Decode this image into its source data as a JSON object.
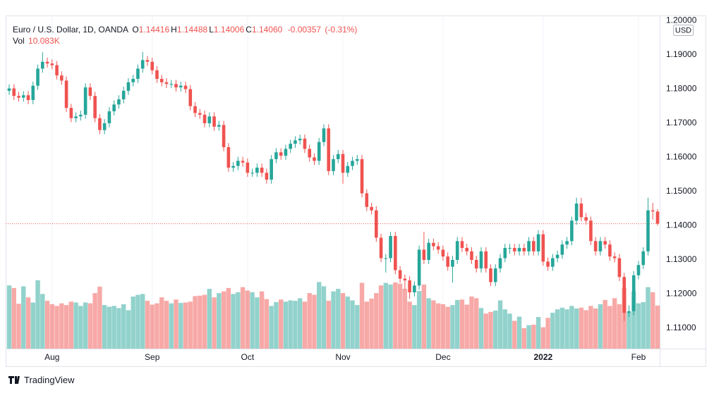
{
  "header": {
    "title": "Euro / U.S. Dollar, 1D, OANDA",
    "quote": [
      {
        "key": "O",
        "value": 1.14416
      },
      {
        "key": "H",
        "value": 1.14488
      },
      {
        "key": "L",
        "value": 1.14006
      },
      {
        "key": "C",
        "value": {
          "value": 1.1406,
          "label": "1.14060"
        }
      }
    ],
    "change": -0.00357,
    "change_pct": {
      "value": -0.31,
      "label": "(-0.31%)"
    },
    "volume_key": "Vol",
    "volume_last": {
      "value": 10.083,
      "label": "10.083K"
    }
  },
  "branding": "TradingView",
  "chart_data": {
    "type": "candlestick",
    "currency": "USD",
    "up_color": "#26a69a",
    "down_color": "#ef5350",
    "grid": true,
    "ylim": [
      1.10402,
      1.20155
    ],
    "yticks": [
      {
        "value": 1.11,
        "label": "1.11000"
      },
      {
        "value": 1.12,
        "label": "1.12000"
      },
      {
        "value": 1.13,
        "label": "1.13000"
      },
      {
        "value": 1.14,
        "label": "1.14000"
      },
      {
        "value": 1.15,
        "label": "1.15000"
      },
      {
        "value": 1.16,
        "label": "1.16000"
      },
      {
        "value": 1.17,
        "label": "1.17000"
      },
      {
        "value": 1.18,
        "label": "1.18000"
      },
      {
        "value": 1.19,
        "label": "1.19000"
      },
      {
        "value": 1.2,
        "label": "1.20000"
      }
    ],
    "last_price": 1.1406,
    "categories": [
      null,
      null,
      null,
      null,
      null,
      null,
      null,
      null,
      null,
      "Aug",
      null,
      null,
      null,
      null,
      null,
      null,
      null,
      null,
      null,
      null,
      null,
      null,
      null,
      null,
      null,
      null,
      null,
      null,
      null,
      null,
      "Sep",
      null,
      null,
      null,
      null,
      null,
      null,
      null,
      null,
      null,
      null,
      null,
      null,
      null,
      null,
      null,
      null,
      null,
      null,
      null,
      "Oct",
      null,
      null,
      null,
      null,
      null,
      null,
      null,
      null,
      null,
      null,
      null,
      null,
      null,
      null,
      null,
      null,
      null,
      null,
      null,
      "Nov",
      null,
      null,
      null,
      null,
      null,
      null,
      null,
      null,
      null,
      null,
      null,
      null,
      null,
      null,
      null,
      null,
      null,
      null,
      null,
      null,
      "Dec",
      null,
      null,
      null,
      null,
      null,
      null,
      null,
      null,
      null,
      null,
      null,
      null,
      null,
      null,
      null,
      null,
      null,
      null,
      null,
      null,
      "2022",
      null,
      null,
      null,
      null,
      null,
      null,
      null,
      null,
      null,
      null,
      null,
      null,
      null,
      null,
      null,
      null,
      null,
      null,
      null,
      "Feb",
      null,
      null,
      null,
      null
    ],
    "ohlc": [
      [
        1.1795,
        1.1814,
        1.1783,
        1.1802
      ],
      [
        1.1802,
        1.1814,
        1.1768,
        1.178
      ],
      [
        1.178,
        1.1792,
        1.1763,
        1.1775
      ],
      [
        1.1775,
        1.1794,
        1.1763,
        1.1782
      ],
      [
        1.1782,
        1.1794,
        1.1756,
        1.1768
      ],
      [
        1.1768,
        1.1822,
        1.1756,
        1.181
      ],
      [
        1.181,
        1.1872,
        1.1798,
        1.186
      ],
      [
        1.186,
        1.1908,
        1.1848,
        1.188
      ],
      [
        1.188,
        1.1892,
        1.1863,
        1.1875
      ],
      [
        1.1875,
        1.1887,
        1.1858,
        1.187
      ],
      [
        1.187,
        1.1882,
        1.1828,
        1.184
      ],
      [
        1.184,
        1.1852,
        1.1813,
        1.1825
      ],
      [
        1.1825,
        1.1837,
        1.1733,
        1.1745
      ],
      [
        1.1745,
        1.1757,
        1.1703,
        1.1715
      ],
      [
        1.1715,
        1.1732,
        1.1703,
        1.172
      ],
      [
        1.172,
        1.1737,
        1.1708,
        1.1725
      ],
      [
        1.1725,
        1.1817,
        1.1713,
        1.1805
      ],
      [
        1.1805,
        1.1817,
        1.1768,
        1.178
      ],
      [
        1.178,
        1.1792,
        1.1703,
        1.1715
      ],
      [
        1.1715,
        1.1727,
        1.1668,
        1.168
      ],
      [
        1.168,
        1.1712,
        1.1668,
        1.17
      ],
      [
        1.17,
        1.1747,
        1.1688,
        1.1735
      ],
      [
        1.1735,
        1.1767,
        1.1723,
        1.1755
      ],
      [
        1.1755,
        1.1782,
        1.1743,
        1.177
      ],
      [
        1.177,
        1.1807,
        1.1758,
        1.1795
      ],
      [
        1.1795,
        1.1832,
        1.1783,
        1.182
      ],
      [
        1.182,
        1.1842,
        1.1808,
        1.183
      ],
      [
        1.183,
        1.1872,
        1.1818,
        1.186
      ],
      [
        1.186,
        1.1909,
        1.1848,
        1.1885
      ],
      [
        1.1885,
        1.1897,
        1.1868,
        1.188
      ],
      [
        1.188,
        1.1892,
        1.1843,
        1.1855
      ],
      [
        1.1855,
        1.1867,
        1.1818,
        1.183
      ],
      [
        1.183,
        1.1842,
        1.1808,
        1.182
      ],
      [
        1.182,
        1.1832,
        1.1803,
        1.1815
      ],
      [
        1.1815,
        1.1827,
        1.1803,
        1.1815
      ],
      [
        1.1815,
        1.1827,
        1.1793,
        1.1805
      ],
      [
        1.1805,
        1.1822,
        1.1793,
        1.181
      ],
      [
        1.181,
        1.1822,
        1.1788,
        1.18
      ],
      [
        1.18,
        1.1812,
        1.1738,
        1.175
      ],
      [
        1.175,
        1.1762,
        1.1718,
        1.173
      ],
      [
        1.173,
        1.1742,
        1.1713,
        1.1725
      ],
      [
        1.1725,
        1.1737,
        1.1688,
        1.17
      ],
      [
        1.17,
        1.1732,
        1.1688,
        1.172
      ],
      [
        1.172,
        1.1732,
        1.1678,
        1.169
      ],
      [
        1.169,
        1.1707,
        1.1678,
        1.1695
      ],
      [
        1.1695,
        1.1707,
        1.1618,
        1.163
      ],
      [
        1.163,
        1.1642,
        1.1558,
        1.157
      ],
      [
        1.157,
        1.1587,
        1.1558,
        1.1575
      ],
      [
        1.1575,
        1.1602,
        1.1563,
        1.159
      ],
      [
        1.159,
        1.1602,
        1.1573,
        1.1585
      ],
      [
        1.1585,
        1.1597,
        1.1543,
        1.1555
      ],
      [
        1.1555,
        1.1567,
        1.1543,
        1.1555
      ],
      [
        1.1555,
        1.1582,
        1.1543,
        1.157
      ],
      [
        1.157,
        1.1582,
        1.1543,
        1.1555
      ],
      [
        1.1555,
        1.1567,
        1.1523,
        1.1535
      ],
      [
        1.1535,
        1.1607,
        1.1523,
        1.1595
      ],
      [
        1.1595,
        1.1627,
        1.1583,
        1.1615
      ],
      [
        1.1615,
        1.1627,
        1.1593,
        1.1605
      ],
      [
        1.1605,
        1.1637,
        1.1593,
        1.1625
      ],
      [
        1.1625,
        1.1652,
        1.1613,
        1.164
      ],
      [
        1.164,
        1.1662,
        1.1628,
        1.165
      ],
      [
        1.165,
        1.1667,
        1.1638,
        1.1655
      ],
      [
        1.1655,
        1.1667,
        1.1613,
        1.1625
      ],
      [
        1.1625,
        1.1637,
        1.1588,
        1.16
      ],
      [
        1.16,
        1.1612,
        1.1578,
        1.159
      ],
      [
        1.159,
        1.1657,
        1.1578,
        1.1645
      ],
      [
        1.1645,
        1.1697,
        1.1633,
        1.1685
      ],
      [
        1.1685,
        1.1697,
        1.1548,
        1.156
      ],
      [
        1.156,
        1.1607,
        1.1548,
        1.1595
      ],
      [
        1.1595,
        1.1622,
        1.1583,
        1.161
      ],
      [
        1.161,
        1.1622,
        1.1523,
        1.1555
      ],
      [
        1.1555,
        1.1587,
        1.1543,
        1.1575
      ],
      [
        1.1575,
        1.1602,
        1.1563,
        1.159
      ],
      [
        1.159,
        1.1607,
        1.1578,
        1.1595
      ],
      [
        1.1595,
        1.1607,
        1.1483,
        1.1495
      ],
      [
        1.1495,
        1.1507,
        1.1443,
        1.1455
      ],
      [
        1.1455,
        1.1467,
        1.1433,
        1.1445
      ],
      [
        1.1445,
        1.1457,
        1.1353,
        1.1365
      ],
      [
        1.1365,
        1.1377,
        1.1293,
        1.1305
      ],
      [
        1.1305,
        1.1317,
        1.1263,
        1.1305
      ],
      [
        1.1305,
        1.1382,
        1.1293,
        1.137
      ],
      [
        1.137,
        1.1382,
        1.1258,
        1.127
      ],
      [
        1.127,
        1.1282,
        1.1233,
        1.1245
      ],
      [
        1.1245,
        1.1257,
        1.1213,
        1.124
      ],
      [
        1.124,
        1.1252,
        1.1186,
        1.1205
      ],
      [
        1.1205,
        1.1237,
        1.1193,
        1.1225
      ],
      [
        1.1225,
        1.1342,
        1.1213,
        1.133
      ],
      [
        1.133,
        1.1382,
        1.1288,
        1.13
      ],
      [
        1.13,
        1.1362,
        1.1288,
        1.135
      ],
      [
        1.135,
        1.1362,
        1.1328,
        1.134
      ],
      [
        1.134,
        1.1352,
        1.1318,
        1.133
      ],
      [
        1.133,
        1.1342,
        1.1298,
        1.131
      ],
      [
        1.131,
        1.1322,
        1.1268,
        1.128
      ],
      [
        1.128,
        1.1312,
        1.1233,
        1.13
      ],
      [
        1.13,
        1.1367,
        1.1288,
        1.1355
      ],
      [
        1.1355,
        1.1367,
        1.1323,
        1.1335
      ],
      [
        1.1335,
        1.1347,
        1.1313,
        1.1325
      ],
      [
        1.1325,
        1.1337,
        1.1288,
        1.13
      ],
      [
        1.13,
        1.1312,
        1.1263,
        1.1275
      ],
      [
        1.1275,
        1.1337,
        1.1263,
        1.1325
      ],
      [
        1.1325,
        1.1337,
        1.1263,
        1.1275
      ],
      [
        1.1275,
        1.1287,
        1.1223,
        1.1235
      ],
      [
        1.1235,
        1.1287,
        1.1223,
        1.1275
      ],
      [
        1.1275,
        1.1317,
        1.1263,
        1.1305
      ],
      [
        1.1305,
        1.1347,
        1.1293,
        1.1335
      ],
      [
        1.1335,
        1.1347,
        1.1318,
        1.1335
      ],
      [
        1.1335,
        1.1347,
        1.1313,
        1.1325
      ],
      [
        1.1325,
        1.1347,
        1.1313,
        1.1335
      ],
      [
        1.1335,
        1.1347,
        1.1313,
        1.1325
      ],
      [
        1.1325,
        1.1367,
        1.1313,
        1.1355
      ],
      [
        1.1355,
        1.1367,
        1.1313,
        1.1325
      ],
      [
        1.1325,
        1.1387,
        1.1313,
        1.1375
      ],
      [
        1.1375,
        1.1387,
        1.1283,
        1.1295
      ],
      [
        1.1295,
        1.1307,
        1.1268,
        1.128
      ],
      [
        1.128,
        1.1317,
        1.1268,
        1.1305
      ],
      [
        1.1305,
        1.1327,
        1.1293,
        1.1315
      ],
      [
        1.1315,
        1.1357,
        1.1303,
        1.1345
      ],
      [
        1.1345,
        1.1367,
        1.1333,
        1.1355
      ],
      [
        1.1355,
        1.1427,
        1.1343,
        1.1415
      ],
      [
        1.1415,
        1.1482,
        1.1403,
        1.1465
      ],
      [
        1.1465,
        1.1482,
        1.1413,
        1.1425
      ],
      [
        1.1425,
        1.1437,
        1.1403,
        1.1415
      ],
      [
        1.1415,
        1.1427,
        1.1343,
        1.1355
      ],
      [
        1.1355,
        1.1367,
        1.1313,
        1.1325
      ],
      [
        1.1325,
        1.1367,
        1.1313,
        1.1355
      ],
      [
        1.1355,
        1.1367,
        1.1333,
        1.1345
      ],
      [
        1.1345,
        1.1357,
        1.1298,
        1.131
      ],
      [
        1.131,
        1.1322,
        1.1293,
        1.1305
      ],
      [
        1.1305,
        1.1317,
        1.1238,
        1.125
      ],
      [
        1.125,
        1.1262,
        1.1121,
        1.1145
      ],
      [
        1.1145,
        1.1167,
        1.1133,
        1.115
      ],
      [
        1.115,
        1.1267,
        1.1138,
        1.1255
      ],
      [
        1.1255,
        1.1297,
        1.1243,
        1.1285
      ],
      [
        1.1285,
        1.1337,
        1.1273,
        1.1325
      ],
      [
        1.1325,
        1.1482,
        1.1313,
        1.1445
      ],
      [
        1.1445,
        1.1467,
        1.1418,
        1.1442
      ],
      [
        1.14416,
        1.14488,
        1.14006,
        1.1406
      ]
    ],
    "volume_ylim": [
      0,
      78
    ],
    "volume": [
      14.8,
      14.2,
      10.5,
      14.6,
      12.0,
      10.8,
      16.0,
      12.8,
      11.2,
      10.4,
      10.0,
      10.6,
      10.2,
      11.0,
      10.8,
      10.0,
      10.8,
      10.6,
      13.0,
      14.5,
      10.2,
      9.8,
      10.0,
      9.5,
      10.4,
      9.0,
      12.2,
      12.6,
      12.8,
      11.2,
      10.3,
      10.6,
      12.0,
      11.2,
      10.6,
      11.5,
      10.7,
      10.8,
      11.0,
      12.3,
      12.4,
      12.6,
      14.0,
      12.0,
      13.0,
      13.4,
      14.2,
      12.8,
      13.2,
      14.4,
      13.6,
      13.2,
      12.0,
      13.4,
      11.6,
      10.0,
      10.9,
      11.5,
      11.0,
      11.3,
      11.2,
      11.8,
      11.0,
      13.0,
      12.6,
      15.6,
      14.6,
      11.2,
      13.4,
      14.0,
      13.0,
      12.2,
      11.3,
      10.2,
      15.4,
      11.0,
      11.7,
      13.0,
      14.8,
      15.4,
      15.0,
      15.5,
      15.2,
      14.0,
      11.0,
      10.2,
      13.5,
      15.0,
      11.8,
      11.3,
      10.6,
      10.4,
      9.8,
      10.2,
      11.4,
      11.5,
      10.3,
      12.2,
      11.8,
      9.5,
      8.2,
      8.6,
      8.9,
      11.3,
      9.2,
      8.2,
      6.5,
      7.5,
      4.8,
      5.5,
      5.6,
      7.4,
      5.0,
      7.2,
      8.4,
      9.2,
      9.6,
      9.2,
      10.0,
      9.4,
      9.6,
      9.0,
      10.0,
      9.4,
      10.4,
      11.4,
      10.0,
      11.8,
      10.4,
      14.2,
      8.5,
      13.4,
      10.6,
      10.9,
      14.4,
      13.2,
      10.083
    ]
  }
}
